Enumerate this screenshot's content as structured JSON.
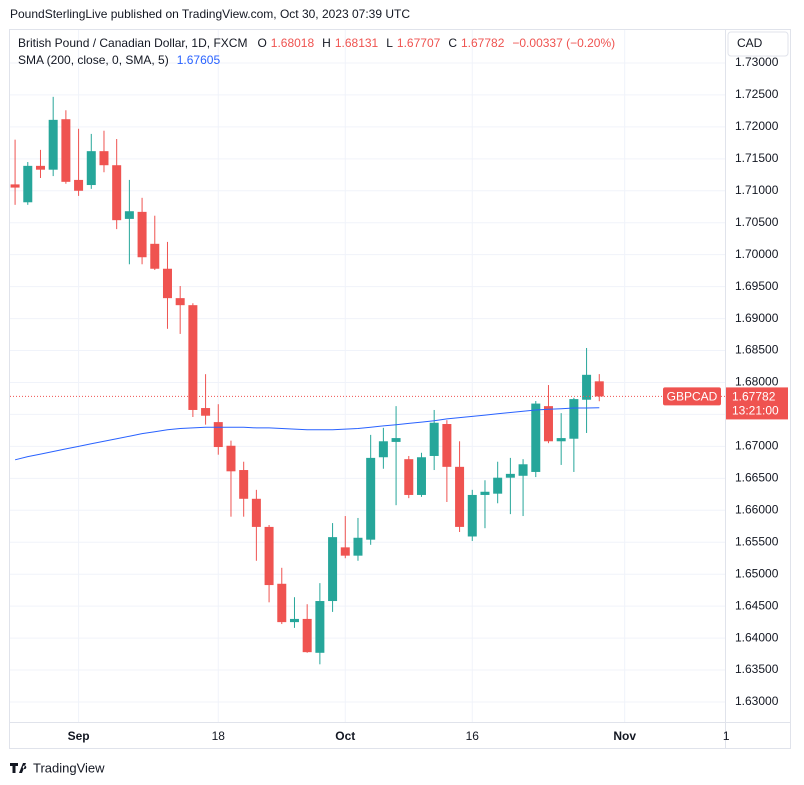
{
  "header": "PoundSterlingLive published on TradingView.com, Oct 30, 2023 07:39 UTC",
  "brand": "TradingView",
  "chart_data": {
    "type": "candlestick",
    "title": "British Pound / Canadian Dollar, 1D, FXCM",
    "legend_keys": [
      "O",
      "H",
      "L",
      "C"
    ],
    "change": "−0.00337 (−0.20%)",
    "currency": "CAD",
    "symbol": "GBPCAD",
    "countdown": "13:21:00",
    "up_color": "#26a69a",
    "down_color": "#ef5350",
    "grid": true,
    "candles": {
      "open": [
        1.711,
        1.7082,
        1.7139,
        1.7133,
        1.7212,
        1.7117,
        1.7109,
        1.7162,
        1.714,
        1.7056,
        1.7067,
        1.7017,
        1.6978,
        1.6932,
        1.6921,
        1.676,
        1.6738,
        1.6701,
        1.6663,
        1.6618,
        1.6574,
        1.6485,
        1.6425,
        1.643,
        1.6377,
        1.6458,
        1.6542,
        1.6529,
        1.6554,
        1.6683,
        1.6707,
        1.668,
        1.6624,
        1.6685,
        1.6735,
        1.6668,
        1.6559,
        1.6624,
        1.6626,
        1.6651,
        1.6654,
        1.666,
        1.6763,
        1.6708,
        1.6712,
        1.6773,
        1.68018
      ],
      "high": [
        1.718,
        1.7145,
        1.7164,
        1.7247,
        1.7226,
        1.7197,
        1.7189,
        1.7194,
        1.7181,
        1.7117,
        1.7089,
        1.7061,
        1.702,
        1.6951,
        1.6924,
        1.6813,
        1.6766,
        1.6709,
        1.6676,
        1.6632,
        1.6577,
        1.651,
        1.6464,
        1.6453,
        1.6486,
        1.658,
        1.6591,
        1.6588,
        1.6718,
        1.6729,
        1.6763,
        1.6685,
        1.669,
        1.6757,
        1.6741,
        1.6708,
        1.6632,
        1.6647,
        1.6676,
        1.6682,
        1.668,
        1.6771,
        1.6796,
        1.6752,
        1.6776,
        1.6854,
        1.68131
      ],
      "low": [
        1.7078,
        1.7078,
        1.712,
        1.7123,
        1.7111,
        1.7092,
        1.7103,
        1.7129,
        1.704,
        1.6985,
        1.6985,
        1.6976,
        1.6884,
        1.6876,
        1.6746,
        1.6734,
        1.6687,
        1.659,
        1.659,
        1.6521,
        1.6456,
        1.6422,
        1.6416,
        1.6377,
        1.6359,
        1.6441,
        1.6525,
        1.6521,
        1.6546,
        1.6665,
        1.6608,
        1.6619,
        1.6621,
        1.6663,
        1.6613,
        1.6566,
        1.6552,
        1.6572,
        1.6611,
        1.6594,
        1.6591,
        1.6652,
        1.6705,
        1.6671,
        1.666,
        1.6721,
        1.67707
      ],
      "close": [
        1.7105,
        1.7139,
        1.7133,
        1.7211,
        1.7114,
        1.71,
        1.7162,
        1.714,
        1.7054,
        1.7068,
        1.6996,
        1.6978,
        1.6932,
        1.6921,
        1.6757,
        1.6748,
        1.6699,
        1.6661,
        1.6618,
        1.6574,
        1.6483,
        1.6425,
        1.643,
        1.6378,
        1.6458,
        1.6558,
        1.6529,
        1.6557,
        1.6682,
        1.6708,
        1.6713,
        1.6624,
        1.6683,
        1.6737,
        1.6668,
        1.6574,
        1.6624,
        1.6629,
        1.6651,
        1.6657,
        1.6672,
        1.6767,
        1.6708,
        1.6713,
        1.6774,
        1.6812,
        1.67782
      ]
    },
    "indicator": {
      "name": "SMA (200, close, 0, SMA, 5)",
      "color": "#2962ff",
      "values": [
        1.6679,
        1.6684,
        1.6688,
        1.6692,
        1.6696,
        1.67,
        1.6704,
        1.6708,
        1.6712,
        1.6716,
        1.672,
        1.6723,
        1.6726,
        1.6728,
        1.6729,
        1.673,
        1.673,
        1.673,
        1.673,
        1.6729,
        1.6729,
        1.6728,
        1.6727,
        1.6726,
        1.6726,
        1.6726,
        1.6727,
        1.6728,
        1.673,
        1.6732,
        1.6734,
        1.6736,
        1.6738,
        1.674,
        1.6743,
        1.6745,
        1.6747,
        1.6749,
        1.6751,
        1.6753,
        1.6755,
        1.6757,
        1.6758,
        1.6759,
        1.676,
        1.676,
        1.67605
      ]
    },
    "xlim": [
      -0.4,
      55.9
    ],
    "xticks": [
      {
        "value": 5,
        "label": "Sep"
      },
      {
        "value": 16,
        "label": "18"
      },
      {
        "value": 26,
        "label": "Oct"
      },
      {
        "value": 36,
        "label": "16"
      },
      {
        "value": 48,
        "label": "Nov"
      },
      {
        "value": 56,
        "label": "1"
      }
    ],
    "ylim": [
      1.62687,
      1.73516
    ],
    "yticks": [
      {
        "value": 1.63,
        "label": "1.63000"
      },
      {
        "value": 1.635,
        "label": "1.63500"
      },
      {
        "value": 1.64,
        "label": "1.64000"
      },
      {
        "value": 1.645,
        "label": "1.64500"
      },
      {
        "value": 1.65,
        "label": "1.65000"
      },
      {
        "value": 1.655,
        "label": "1.65500"
      },
      {
        "value": 1.66,
        "label": "1.66000"
      },
      {
        "value": 1.665,
        "label": "1.66500"
      },
      {
        "value": 1.67,
        "label": "1.67000"
      },
      {
        "value": 1.675,
        "label": "1.67500"
      },
      {
        "value": 1.68,
        "label": "1.68000"
      },
      {
        "value": 1.685,
        "label": "1.68500"
      },
      {
        "value": 1.69,
        "label": "1.69000"
      },
      {
        "value": 1.695,
        "label": "1.69500"
      },
      {
        "value": 1.7,
        "label": "1.70000"
      },
      {
        "value": 1.705,
        "label": "1.70500"
      },
      {
        "value": 1.71,
        "label": "1.71000"
      },
      {
        "value": 1.715,
        "label": "1.71500"
      },
      {
        "value": 1.72,
        "label": "1.72000"
      },
      {
        "value": 1.725,
        "label": "1.72500"
      },
      {
        "value": 1.73,
        "label": "1.73000"
      }
    ]
  }
}
